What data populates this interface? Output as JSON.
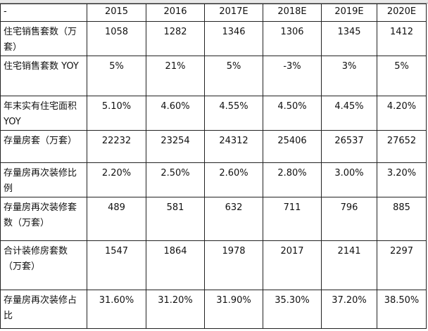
{
  "table": {
    "header": [
      "-",
      "2015",
      "2016",
      "2017E",
      "2018E",
      "2019E",
      "2020E"
    ],
    "rows": [
      [
        "住宅销售套数（万套）",
        "1058",
        "1282",
        "1346",
        "1306",
        "1345",
        "1412"
      ],
      [
        "住宅销售套数 YOY",
        "5%",
        "21%",
        "5%",
        "-3%",
        "3%",
        "5%"
      ],
      [
        "年末实有住宅面积YOY",
        "5.10%",
        "4.60%",
        "4.55%",
        "4.50%",
        "4.45%",
        "4.20%"
      ],
      [
        "存量房套（万套）",
        "22232",
        "23254",
        "24312",
        "25406",
        "26537",
        "27652"
      ],
      [
        "存量房再次装修比例",
        "2.20%",
        "2.50%",
        "2.60%",
        "2.80%",
        "3.00%",
        "3.20%"
      ],
      [
        "存量房再次装修套数（万套）",
        "489",
        "581",
        "632",
        "711",
        "796",
        "885"
      ],
      [
        "合计装修房套数（万套）",
        "1547",
        "1864",
        "1978",
        "2017",
        "2141",
        "2297"
      ],
      [
        "存量房再次装修占比",
        "31.60%",
        "31.20%",
        "31.90%",
        "35.30%",
        "37.20%",
        "38.50%"
      ]
    ]
  }
}
